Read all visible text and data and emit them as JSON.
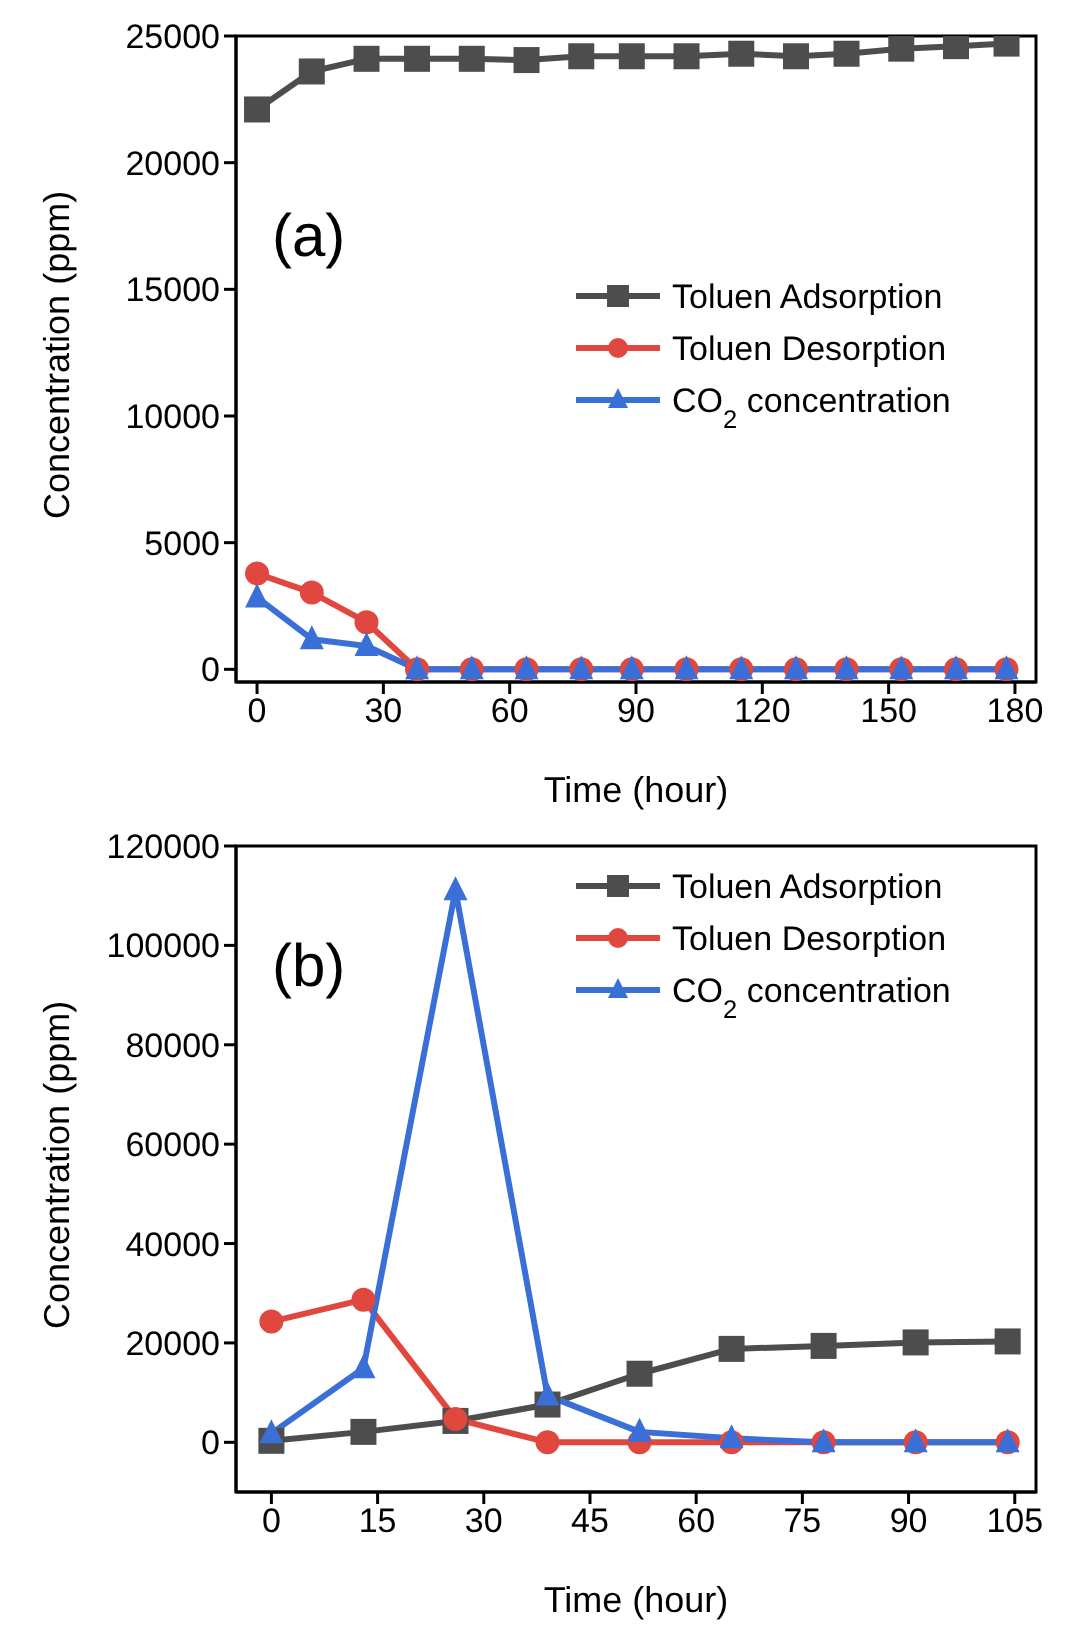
{
  "chart_data": [
    {
      "type": "line",
      "xlabel": "Time (hour)",
      "ylabel": "Concentration (ppm)",
      "annotations": [
        "(a)"
      ],
      "x": [
        0,
        13,
        26,
        38,
        51,
        64,
        77,
        89,
        102,
        115,
        128,
        140,
        153,
        166,
        178
      ],
      "xlim": [
        -5,
        185
      ],
      "xticks": [
        0,
        30,
        60,
        90,
        120,
        150,
        180
      ],
      "ylim": [
        -500,
        25000
      ],
      "yticks": [
        0,
        5000,
        10000,
        15000,
        20000,
        25000
      ],
      "legend": "top right",
      "grid": false,
      "line_style": "solid",
      "series": [
        {
          "name": "Toluen Adsorption",
          "color": "#4d4d4d",
          "marker": "square",
          "values": [
            22100,
            23600,
            24100,
            24100,
            24100,
            24050,
            24200,
            24200,
            24200,
            24300,
            24200,
            24300,
            24500,
            24600,
            24700
          ]
        },
        {
          "name": "Toluen Desorption",
          "color": "#e0473f",
          "marker": "circle",
          "values": [
            3780,
            3030,
            1860,
            0,
            0,
            0,
            0,
            0,
            0,
            0,
            0,
            0,
            0,
            0,
            0
          ]
        },
        {
          "name": "CO$_{2}$ concentration",
          "color": "#3b6fd8",
          "marker": "triangle",
          "values": [
            2840,
            1190,
            920,
            0,
            0,
            0,
            0,
            0,
            0,
            0,
            0,
            0,
            0,
            0,
            0
          ]
        }
      ]
    },
    {
      "type": "line",
      "xlabel": "Time (hour)",
      "ylabel": "Concentration (ppm)",
      "annotations": [
        "(b)"
      ],
      "x": [
        0,
        13,
        26,
        39,
        52,
        65,
        78,
        91,
        104
      ],
      "xlim": [
        -5,
        108
      ],
      "xticks": [
        0,
        15,
        30,
        45,
        60,
        75,
        90,
        105
      ],
      "ylim": [
        -10000,
        120000
      ],
      "yticks": [
        0,
        20000,
        40000,
        60000,
        80000,
        100000,
        120000
      ],
      "legend": "top right",
      "grid": false,
      "line_style": "solid",
      "series": [
        {
          "name": "Toluen Adsorption",
          "color": "#4d4d4d",
          "marker": "square",
          "values": [
            300,
            2100,
            4300,
            7600,
            13800,
            18800,
            19400,
            20100,
            20300
          ]
        },
        {
          "name": "Toluen Desorption",
          "color": "#e0473f",
          "marker": "circle",
          "values": [
            24300,
            28700,
            4700,
            0,
            0,
            0,
            0,
            0,
            0
          ]
        },
        {
          "name": "CO$_{2}$ concentration",
          "color": "#3b6fd8",
          "marker": "triangle",
          "values": [
            1800,
            14900,
            111100,
            9400,
            2100,
            800,
            0,
            0,
            0
          ]
        }
      ]
    }
  ]
}
